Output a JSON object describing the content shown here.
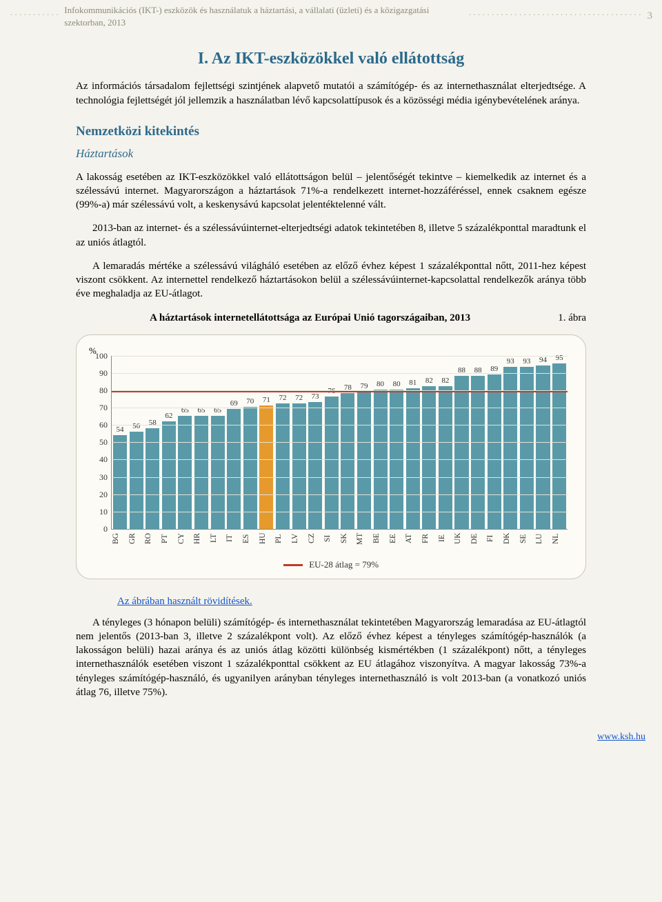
{
  "header": {
    "running_title": "Infokommunikációs (IKT-) eszközök és használatuk a háztartási, a vállalati (üzleti) és a közigazgatási szektorban, 2013",
    "page_number": "3"
  },
  "section_title": "I. Az IKT-eszközökkel való ellátottság",
  "intro_paragraph": "Az információs társadalom fejlettségi szintjének alapvető mutatói a számítógép- és az internethasználat elterjedtsége. A technológia fejlettségét jól jellemzik a használatban lévő kapcsolattípusok és a közösségi média igénybevételének aránya.",
  "subhead": "Nemzetközi kitekintés",
  "ital_head": "Háztartások",
  "body_para_1": "A lakosság esetében az IKT-eszközökkel való ellátottságon belül – jelentőségét tekintve – kiemelkedik az internet és a szélessávú internet. Magyarországon a háztartások 71%-a rendelkezett internet-hozzáféréssel, ennek csaknem egésze (99%-a) már szélessávú volt, a keskenysávú kapcsolat jelentéktelenné vált.",
  "body_para_2": "2013-ban az internet- és a szélessávúinternet-elterjedtségi adatok tekintetében 8, illetve 5 százalékponttal maradtunk el az uniós átlagtól.",
  "body_para_3": "A lemaradás mértéke a szélessávú világháló esetében az előző évhez képest 1 százalékponttal nőtt, 2011-hez képest viszont csökkent. Az internettel rendelkező háztartásokon belül a szélessávúinternet-kapcsolattal rendelkezők aránya több éve meghaladja az EU-átlagot.",
  "figure": {
    "caption": "A háztartások internetellátottsága az Európai Unió tagországaiban, 2013",
    "number_label": "1. ábra",
    "y_unit": "%",
    "y_ticks": [
      "0",
      "10",
      "20",
      "30",
      "40",
      "50",
      "60",
      "70",
      "80",
      "90",
      "100"
    ],
    "ymax": 100,
    "avg_line_value": 79,
    "legend_label": "EU-28 átlag = 79%",
    "legend_color": "#c0392b",
    "bar_default_color": "#5a9aa8",
    "highlight_color": "#e69a2e",
    "highlight_code": "HU",
    "countries": [
      "BG",
      "GR",
      "RO",
      "PT",
      "CY",
      "HR",
      "LT",
      "IT",
      "ES",
      "HU",
      "PL",
      "LV",
      "CZ",
      "SI",
      "SK",
      "MT",
      "BE",
      "EE",
      "AT",
      "FR",
      "IE",
      "UK",
      "DE",
      "FI",
      "DK",
      "SE",
      "LU",
      "NL"
    ],
    "values": [
      54,
      56,
      58,
      62,
      65,
      65,
      65,
      69,
      70,
      71,
      72,
      72,
      73,
      76,
      78,
      79,
      80,
      80,
      81,
      82,
      82,
      88,
      88,
      89,
      93,
      93,
      94,
      95
    ]
  },
  "abbr_link_text": "Az ábrában használt rövidítések.",
  "closing_paragraph": "A tényleges (3 hónapon belüli) számítógép- és internethasználat tekintetében Magyarország lemaradása az EU-átlagtól nem jelentős (2013-ban 3, illetve 2 százalékpont volt). Az előző évhez képest a tényleges számítógép-használók (a lakosságon belüli) hazai aránya és az uniós átlag közötti különbség kismértékben (1 százalékpont) nőtt, a tényleges internethasználók esetében viszont 1 százalékponttal csökkent az EU átlagához viszonyítva. A magyar lakosság 73%-a tényleges számítógép-használó, és ugyanilyen arányban tényleges internethasználó is volt 2013-ban (a vonatkozó uniós átlag 76, illetve 75%).",
  "footer_link": "www.ksh.hu"
}
